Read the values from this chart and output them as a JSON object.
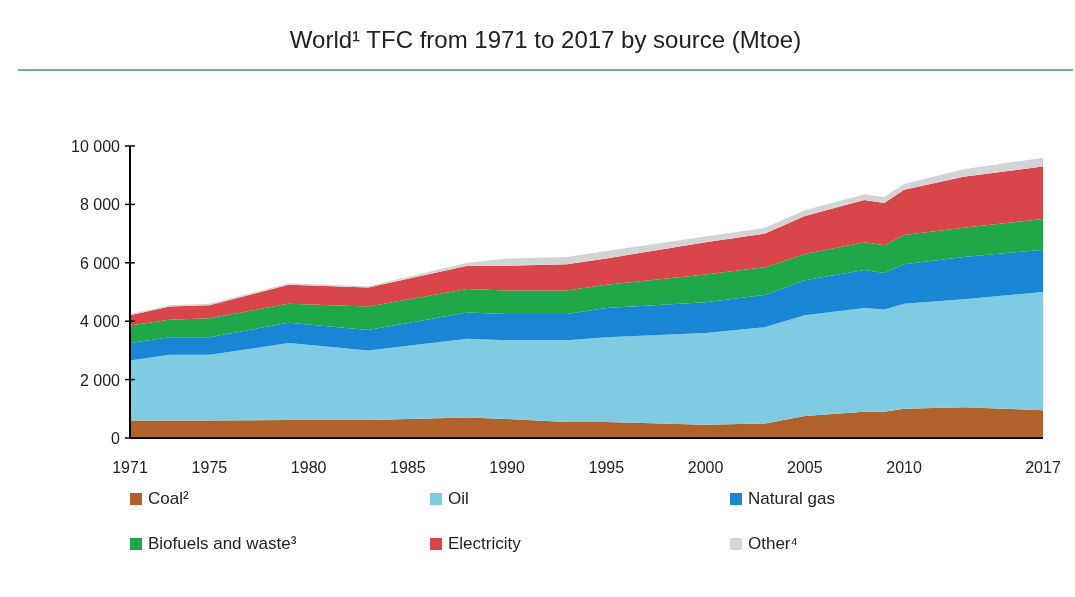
{
  "chart_data": {
    "type": "area",
    "stacked": true,
    "title": "World¹ TFC from 1971 to 2017 by source (Mtoe)",
    "x": [
      1971,
      1973,
      1975,
      1979,
      1983,
      1988,
      1990,
      1993,
      1995,
      2000,
      2003,
      2005,
      2008,
      2009,
      2010,
      2013,
      2017
    ],
    "series": [
      {
        "name": "Coal²",
        "color": "#b0622a",
        "values": [
          600,
          600,
          600,
          620,
          620,
          700,
          650,
          550,
          550,
          450,
          500,
          750,
          900,
          900,
          1000,
          1050,
          950
        ]
      },
      {
        "name": "Oil",
        "color": "#7ecbe2",
        "values": [
          2050,
          2250,
          2250,
          2630,
          2380,
          2700,
          2700,
          2800,
          2900,
          3150,
          3300,
          3450,
          3550,
          3500,
          3600,
          3700,
          4050
        ]
      },
      {
        "name": "Natural gas",
        "color": "#1a86d6",
        "values": [
          600,
          600,
          600,
          700,
          700,
          900,
          900,
          900,
          1000,
          1050,
          1100,
          1200,
          1300,
          1250,
          1350,
          1450,
          1450
        ]
      },
      {
        "name": "Biofuels and waste³",
        "color": "#1ea84a",
        "values": [
          600,
          600,
          650,
          650,
          800,
          800,
          800,
          800,
          800,
          950,
          950,
          900,
          950,
          950,
          1000,
          1000,
          1050
        ]
      },
      {
        "name": "Electricity",
        "color": "#d9464a",
        "values": [
          350,
          450,
          450,
          650,
          650,
          800,
          850,
          900,
          900,
          1100,
          1150,
          1300,
          1450,
          1450,
          1550,
          1750,
          1800
        ]
      },
      {
        "name": "Other⁴",
        "color": "#d3d3d6",
        "values": [
          50,
          50,
          50,
          50,
          50,
          100,
          250,
          250,
          250,
          200,
          200,
          200,
          200,
          200,
          200,
          250,
          300
        ]
      }
    ],
    "xlim": [
      1971,
      2017
    ],
    "xticks": [
      1971,
      1975,
      1980,
      1985,
      1990,
      1995,
      2000,
      2005,
      2010,
      2017
    ],
    "ylim": [
      0,
      10000
    ],
    "yticks": [
      {
        "value": 0,
        "label": "0"
      },
      {
        "value": 2000,
        "label": "2 000"
      },
      {
        "value": 4000,
        "label": "4 000"
      },
      {
        "value": 6000,
        "label": "6 000"
      },
      {
        "value": 8000,
        "label": "8 000"
      },
      {
        "value": 10000,
        "label": "10 000"
      }
    ],
    "grid": false,
    "legend": "bottom"
  }
}
